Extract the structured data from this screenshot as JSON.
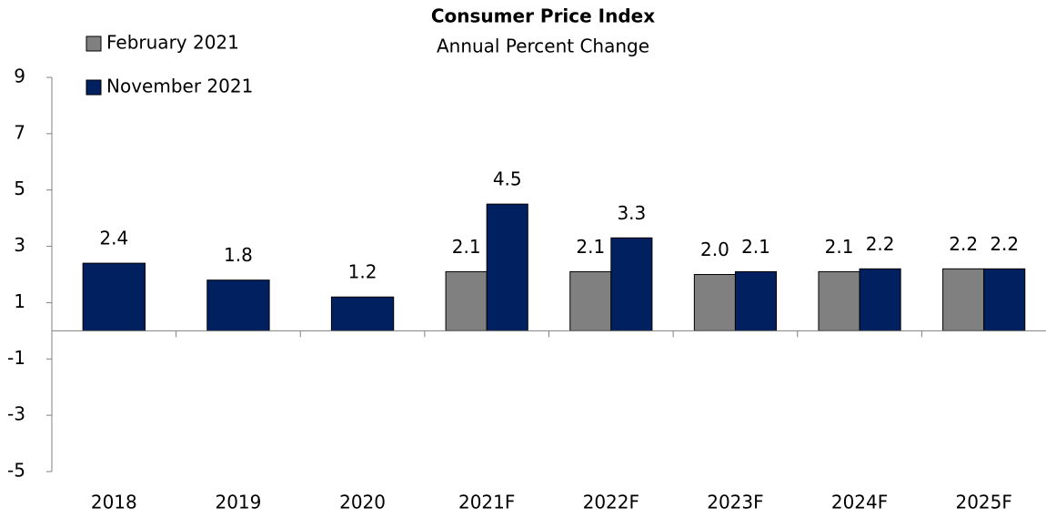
{
  "chart_data": {
    "type": "bar",
    "title": "Consumer Price Index",
    "subtitle": "Annual Percent Change",
    "categories": [
      "2018",
      "2019",
      "2020",
      "2021F",
      "2022F",
      "2023F",
      "2024F",
      "2025F"
    ],
    "series": [
      {
        "name": "February 2021",
        "color": "#808080",
        "values": [
          null,
          null,
          null,
          2.1,
          2.1,
          2.0,
          2.1,
          2.2
        ],
        "value_labels": [
          null,
          null,
          null,
          "2.1",
          "2.1",
          "2.0",
          "2.1",
          "2.2"
        ]
      },
      {
        "name": "November 2021",
        "color": "#002060",
        "values": [
          2.4,
          1.8,
          1.2,
          4.5,
          3.3,
          2.1,
          2.2,
          2.2
        ]
      }
    ],
    "ylim": [
      -5,
      9
    ],
    "yticks": [
      -5,
      -3,
      -1,
      1,
      3,
      5,
      7,
      9
    ],
    "grid": false,
    "legend": "top-left"
  }
}
